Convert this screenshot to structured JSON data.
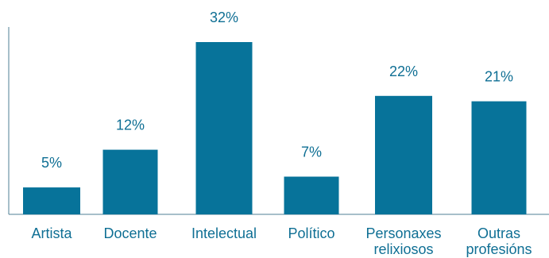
{
  "chart_data": {
    "type": "bar",
    "categories": [
      [
        "Artista"
      ],
      [
        "Docente"
      ],
      [
        "Intelectual"
      ],
      [
        "Político"
      ],
      [
        "Personaxes",
        "relixiosos"
      ],
      [
        "Outras",
        "profesións"
      ]
    ],
    "values": [
      5,
      12,
      32,
      7,
      22,
      21
    ],
    "value_labels": [
      "5%",
      "12%",
      "32%",
      "7%",
      "22%",
      "21%"
    ],
    "ylim": [
      0,
      32
    ],
    "grid": false,
    "legend": "none",
    "colors": {
      "bar": "#07739a",
      "text": "#0f6f94",
      "axis": "#4f7f94"
    }
  }
}
